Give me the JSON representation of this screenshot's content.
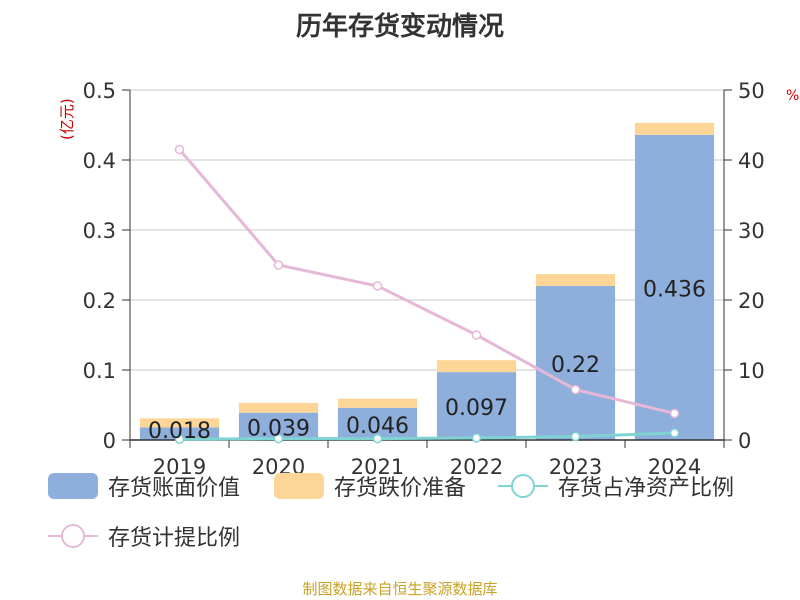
{
  "chart_data": {
    "type": "bar",
    "title": "历年存货变动情况",
    "categories": [
      "2019",
      "2020",
      "2021",
      "2022",
      "2023",
      "2024"
    ],
    "left_unit": "(亿元)",
    "right_unit": "%",
    "left_axis": {
      "min": 0,
      "max": 0.5,
      "ticks": [
        "0",
        "0.1",
        "0.2",
        "0.3",
        "0.4",
        "0.5"
      ]
    },
    "right_axis": {
      "min": 0,
      "max": 50,
      "ticks": [
        "0",
        "10",
        "20",
        "30",
        "40",
        "50"
      ]
    },
    "grid": true,
    "series": [
      {
        "name": "存货账面价值",
        "kind": "bar",
        "stack": "s",
        "axis": "left",
        "color": "#8eaedb",
        "values": [
          0.018,
          0.039,
          0.046,
          0.097,
          0.22,
          0.436
        ],
        "labels": [
          "0.018",
          "0.039",
          "0.046",
          "0.097",
          "0.22",
          "0.436"
        ]
      },
      {
        "name": "存货跌价准备",
        "kind": "bar",
        "stack": "s",
        "axis": "left",
        "color": "#fdd596",
        "values": [
          0.013,
          0.014,
          0.013,
          0.017,
          0.017,
          0.017
        ]
      },
      {
        "name": "存货占净资产比例",
        "kind": "line",
        "axis": "right",
        "color": "#7fd3d3",
        "values": [
          0.1,
          0.2,
          0.2,
          0.3,
          0.5,
          1.0
        ]
      },
      {
        "name": "存货计提比例",
        "kind": "line",
        "axis": "right",
        "color": "#e5b8d8",
        "values": [
          41.5,
          25.0,
          22.0,
          15.0,
          7.2,
          3.8
        ]
      }
    ],
    "source": "制图数据来自恒生聚源数据库"
  }
}
